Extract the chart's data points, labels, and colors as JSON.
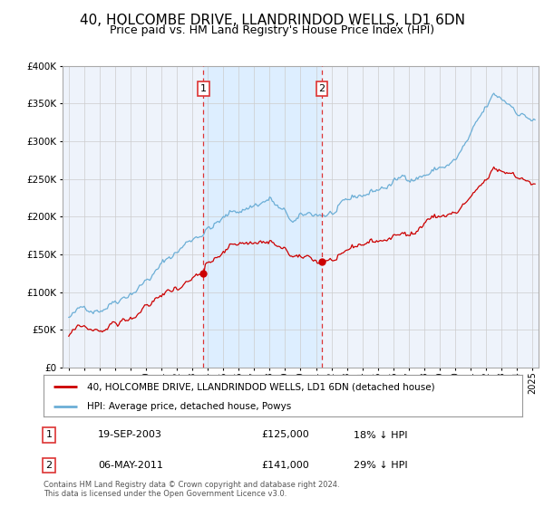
{
  "title": "40, HOLCOMBE DRIVE, LLANDRINDOD WELLS, LD1 6DN",
  "subtitle": "Price paid vs. HM Land Registry's House Price Index (HPI)",
  "footer": "Contains HM Land Registry data © Crown copyright and database right 2024.\nThis data is licensed under the Open Government Licence v3.0.",
  "legend_line1": "40, HOLCOMBE DRIVE, LLANDRINDOD WELLS, LD1 6DN (detached house)",
  "legend_line2": "HPI: Average price, detached house, Powys",
  "sale1_date": "19-SEP-2003",
  "sale1_price": "£125,000",
  "sale1_hpi": "18% ↓ HPI",
  "sale2_date": "06-MAY-2011",
  "sale2_price": "£141,000",
  "sale2_hpi": "29% ↓ HPI",
  "sale1_year": 2003.72,
  "sale1_value": 125000,
  "sale2_year": 2011.37,
  "sale2_value": 141000,
  "ylim": [
    0,
    400000
  ],
  "xlim_start": 1994.6,
  "xlim_end": 2025.4,
  "hpi_color": "#6baed6",
  "price_color": "#cc0000",
  "vline_color": "#dd3333",
  "shade_color": "#ddeeff",
  "grid_color": "#cccccc",
  "bg_color": "#eef3fb",
  "title_fontsize": 11,
  "subtitle_fontsize": 9
}
